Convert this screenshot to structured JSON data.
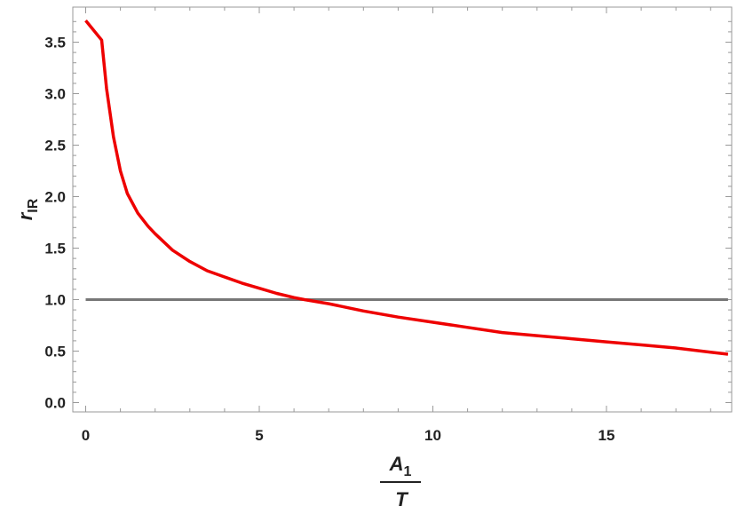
{
  "chart_data": {
    "type": "line",
    "title": "",
    "xlabel": {
      "numerator_base": "A",
      "numerator_sub": "1",
      "denominator": "T"
    },
    "ylabel": {
      "base": "r",
      "sub": "IR"
    },
    "xlim": [
      0,
      18.5
    ],
    "ylim": [
      0,
      3.75
    ],
    "xticks": [
      0,
      5,
      10,
      15
    ],
    "xtick_labels": [
      "0",
      "5",
      "10",
      "15"
    ],
    "yticks": [
      0,
      0.5,
      1.0,
      1.5,
      2.0,
      2.5,
      3.0,
      3.5
    ],
    "ytick_labels": [
      "0.0",
      "0.5",
      "1.0",
      "1.5",
      "2.0",
      "2.5",
      "3.0",
      "3.5"
    ],
    "grid": false,
    "legend": "none",
    "series": [
      {
        "color": "#ee0000",
        "x": [
          0.0,
          0.46,
          0.6,
          0.8,
          1.0,
          1.2,
          1.5,
          1.8,
          2.0,
          2.5,
          3.0,
          3.5,
          4.0,
          4.5,
          5.0,
          5.5,
          6.0,
          6.3,
          7.0,
          8.0,
          9.0,
          10.0,
          11.0,
          12.0,
          13.0,
          14.0,
          15.0,
          16.0,
          17.0,
          18.0,
          18.5
        ],
        "y": [
          3.71,
          3.52,
          3.05,
          2.58,
          2.25,
          2.03,
          1.84,
          1.71,
          1.64,
          1.48,
          1.37,
          1.28,
          1.22,
          1.16,
          1.11,
          1.06,
          1.02,
          1.0,
          0.96,
          0.89,
          0.83,
          0.78,
          0.73,
          0.68,
          0.65,
          0.62,
          0.59,
          0.56,
          0.53,
          0.49,
          0.47
        ]
      },
      {
        "color": "#777777",
        "x": [
          0.0,
          18.5
        ],
        "y": [
          1.0,
          1.0
        ]
      }
    ]
  }
}
